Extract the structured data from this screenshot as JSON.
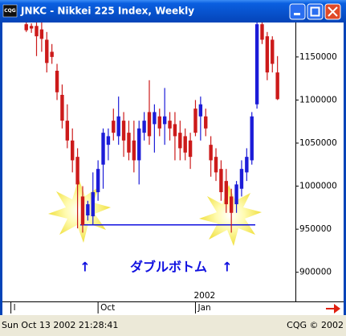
{
  "window": {
    "title": "JNKC - Nikkei 225 Index, Weekly",
    "app_icon": "CQG"
  },
  "chart_data": {
    "type": "candlestick",
    "open": [
      1188000,
      1186000,
      1186000,
      1182000,
      1170000,
      1156000,
      1134000,
      1106000,
      1076000,
      1053000,
      1034000,
      988000,
      966000,
      965000,
      993000,
      1025000,
      1048000,
      1076000,
      1058000,
      1076000,
      1062000,
      1053000,
      1030000,
      1062000,
      1086000,
      1072000,
      1081000,
      1072000,
      1076000,
      1072000,
      1062000,
      1058000,
      1053000,
      1090000,
      1081000,
      1081000,
      1048000,
      1034000,
      1020000,
      1006000,
      988000,
      979000,
      997000,
      1016000,
      1030000,
      1095000,
      1188000,
      1174000,
      1170000,
      1132000
    ],
    "high": [
      1190000,
      1189000,
      1190000,
      1190000,
      1179000,
      1165000,
      1142000,
      1118000,
      1095000,
      1067000,
      1044000,
      1000000,
      983000,
      1016000,
      1030000,
      1067000,
      1067000,
      1090000,
      1104000,
      1086000,
      1076000,
      1076000,
      1076000,
      1086000,
      1123000,
      1095000,
      1090000,
      1114000,
      1086000,
      1086000,
      1076000,
      1067000,
      1062000,
      1100000,
      1104000,
      1090000,
      1058000,
      1044000,
      1030000,
      1020000,
      997000,
      1006000,
      1030000,
      1044000,
      1086000,
      1190000,
      1190000,
      1179000,
      1174000,
      1151000
    ],
    "low": [
      1179000,
      1178000,
      1151000,
      1156000,
      1132000,
      1142000,
      1100000,
      1067000,
      1044000,
      1016000,
      951000,
      946000,
      960000,
      955000,
      983000,
      997000,
      1030000,
      1053000,
      1048000,
      1034000,
      1030000,
      1016000,
      1002000,
      1053000,
      1048000,
      1039000,
      1058000,
      1048000,
      1053000,
      1030000,
      1030000,
      1030000,
      1020000,
      1058000,
      1053000,
      1058000,
      1011000,
      1006000,
      983000,
      969000,
      946000,
      969000,
      988000,
      1006000,
      1025000,
      1090000,
      1165000,
      1123000,
      1132000,
      1100000
    ],
    "close": [
      1181000,
      1183000,
      1174000,
      1171000,
      1143000,
      1150000,
      1109000,
      1076000,
      1053000,
      1030000,
      1002000,
      955000,
      979000,
      993000,
      1020000,
      1062000,
      1058000,
      1062000,
      1081000,
      1053000,
      1039000,
      1030000,
      1067000,
      1076000,
      1058000,
      1086000,
      1067000,
      1081000,
      1067000,
      1058000,
      1044000,
      1039000,
      1034000,
      1062000,
      1095000,
      1067000,
      1030000,
      1016000,
      993000,
      979000,
      969000,
      1002000,
      1020000,
      1034000,
      1081000,
      1188000,
      1170000,
      1132000,
      1142000,
      1101000
    ],
    "up_color": "#1c1cd8",
    "down_color": "#cc1a1a",
    "ylim": [
      868000,
      1190000
    ],
    "yticks": [
      900000,
      950000,
      1000000,
      1050000,
      1100000,
      1150000
    ],
    "xlim": [
      -4.5,
      52.5
    ],
    "xticks": [
      {
        "value": -3,
        "label": "l"
      },
      {
        "value": 14,
        "label": "Oct"
      },
      {
        "value": 33,
        "label": "Jan"
      }
    ],
    "year_label": "2002",
    "support_level": 955000,
    "annotation": {
      "left_arrow": "↑",
      "text": "ダブルボトム",
      "right_arrow": "↑"
    }
  },
  "status": {
    "timestamp": "Sun Oct 13 2002 21:28:41",
    "copyright": "CQG © 2002"
  }
}
